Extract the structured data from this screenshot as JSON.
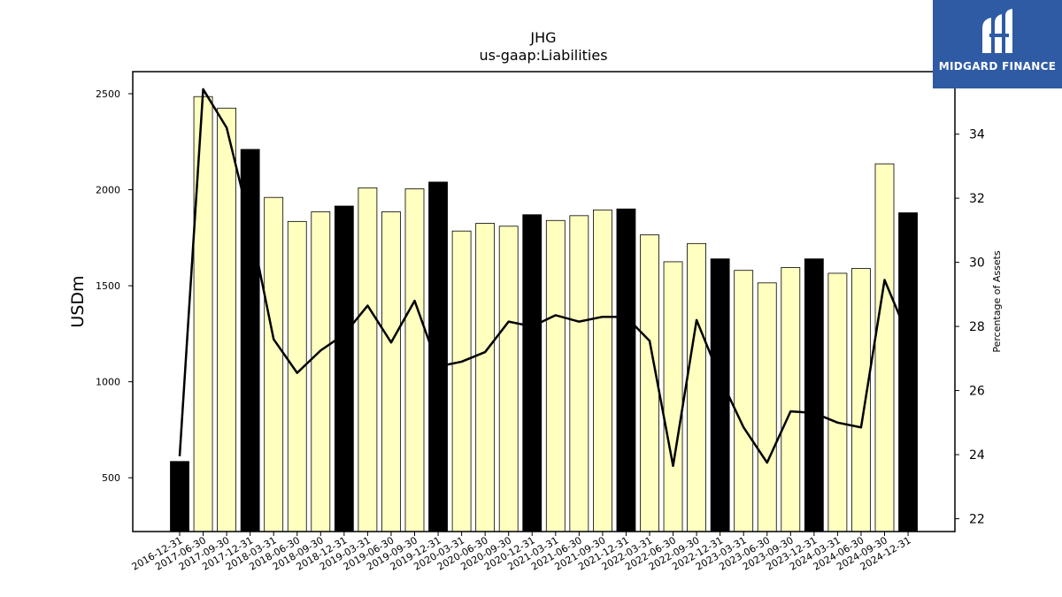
{
  "logo": {
    "text": "MIDGARD FINANCE"
  },
  "colors": {
    "bar_quarter": "#ffffc0",
    "bar_year_end": "#000000",
    "line": "#000000",
    "logo_bg": "#2f5ba5"
  },
  "chart_data": {
    "type": "bar",
    "title": "JHG",
    "subtitle": "us-gaap:Liabilities",
    "ylabel": "USDm",
    "y2label": "Percentage of Assets",
    "ylim": [
      220,
      2615
    ],
    "y2lim": [
      21.6,
      35.95
    ],
    "yticks": [
      500,
      1000,
      1500,
      2000,
      2500
    ],
    "y2ticks": [
      22,
      24,
      26,
      28,
      30,
      32,
      34
    ],
    "categories": [
      "2016-12-31",
      "2017-06-30",
      "2017-09-30",
      "2017-12-31",
      "2018-03-31",
      "2018-06-30",
      "2018-09-30",
      "2018-12-31",
      "2019-03-31",
      "2019-06-30",
      "2019-09-30",
      "2019-12-31",
      "2020-03-31",
      "2020-06-30",
      "2020-09-30",
      "2020-12-31",
      "2021-03-31",
      "2021-06-30",
      "2021-09-30",
      "2021-12-31",
      "2022-03-31",
      "2022-06-30",
      "2022-09-30",
      "2022-12-31",
      "2023-03-31",
      "2023-06-30",
      "2023-09-30",
      "2023-12-31",
      "2024-03-31",
      "2024-06-30",
      "2024-09-30",
      "2024-12-31"
    ],
    "series": [
      {
        "type": "bar",
        "values": [
          585,
          2485,
          2425,
          2210,
          1960,
          1835,
          1885,
          1915,
          2010,
          1885,
          2005,
          2040,
          1785,
          1825,
          1810,
          1870,
          1840,
          1865,
          1895,
          1900,
          1765,
          1625,
          1720,
          1640,
          1580,
          1515,
          1595,
          1640,
          1565,
          1590,
          2135,
          1880
        ],
        "year_end": [
          true,
          false,
          false,
          true,
          false,
          false,
          false,
          true,
          false,
          false,
          false,
          true,
          false,
          false,
          false,
          true,
          false,
          false,
          false,
          true,
          false,
          false,
          false,
          true,
          false,
          false,
          false,
          true,
          false,
          false,
          false,
          true
        ]
      },
      {
        "type": "line",
        "axis": "right",
        "values": [
          23.95,
          35.4,
          34.2,
          31.2,
          27.6,
          26.55,
          27.25,
          27.75,
          28.65,
          27.5,
          28.8,
          26.75,
          26.9,
          27.2,
          28.15,
          28.0,
          28.35,
          28.15,
          28.3,
          28.3,
          27.55,
          23.65,
          28.2,
          26.4,
          24.85,
          23.75,
          25.35,
          25.3,
          25.0,
          24.85,
          29.45,
          27.7
        ]
      }
    ]
  }
}
